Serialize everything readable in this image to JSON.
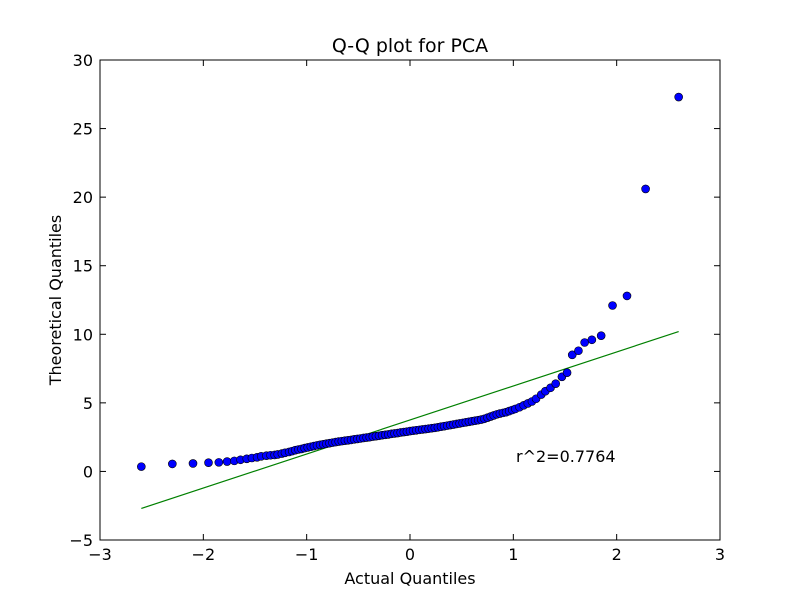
{
  "chart_data": {
    "type": "scatter",
    "title": "Q-Q plot for PCA",
    "xlabel": "Actual Quantiles",
    "ylabel": "Theoretical Quantiles",
    "xlim": [
      -3,
      3
    ],
    "ylim": [
      -5,
      30
    ],
    "xticks": [
      -3,
      -2,
      -1,
      0,
      1,
      2,
      3
    ],
    "yticks": [
      -5,
      0,
      5,
      10,
      15,
      20,
      25,
      30
    ],
    "xtick_labels": [
      "−3",
      "−2",
      "−1",
      "0",
      "1",
      "2",
      "3"
    ],
    "ytick_labels": [
      "−5",
      "0",
      "5",
      "10",
      "15",
      "20",
      "25",
      "30"
    ],
    "grid": false,
    "annotation": "r^2=0.7764",
    "fit_line": {
      "color": "#008000",
      "x": [
        -2.6,
        2.6
      ],
      "y": [
        -2.7,
        10.2
      ]
    },
    "series": [
      {
        "color": "#0000ff",
        "points": [
          [
            -2.6,
            0.35
          ],
          [
            -2.3,
            0.55
          ],
          [
            -2.1,
            0.58
          ],
          [
            -1.95,
            0.64
          ],
          [
            -1.85,
            0.66
          ],
          [
            -1.77,
            0.72
          ],
          [
            -1.7,
            0.77
          ],
          [
            -1.64,
            0.85
          ],
          [
            -1.58,
            0.92
          ],
          [
            -1.53,
            0.98
          ],
          [
            -1.48,
            1.03
          ],
          [
            -1.44,
            1.1
          ],
          [
            -1.39,
            1.15
          ],
          [
            -1.35,
            1.18
          ],
          [
            -1.31,
            1.2
          ],
          [
            -1.28,
            1.24
          ],
          [
            -1.24,
            1.3
          ],
          [
            -1.21,
            1.36
          ],
          [
            -1.17,
            1.42
          ],
          [
            -1.14,
            1.48
          ],
          [
            -1.11,
            1.55
          ],
          [
            -1.08,
            1.6
          ],
          [
            -1.05,
            1.64
          ],
          [
            -1.02,
            1.7
          ],
          [
            -0.99,
            1.75
          ],
          [
            -0.96,
            1.8
          ],
          [
            -0.93,
            1.85
          ],
          [
            -0.9,
            1.9
          ],
          [
            -0.87,
            1.94
          ],
          [
            -0.84,
            1.98
          ],
          [
            -0.81,
            2.02
          ],
          [
            -0.78,
            2.06
          ],
          [
            -0.75,
            2.1
          ],
          [
            -0.72,
            2.14
          ],
          [
            -0.69,
            2.18
          ],
          [
            -0.66,
            2.21
          ],
          [
            -0.63,
            2.24
          ],
          [
            -0.6,
            2.27
          ],
          [
            -0.57,
            2.3
          ],
          [
            -0.54,
            2.34
          ],
          [
            -0.51,
            2.37
          ],
          [
            -0.48,
            2.4
          ],
          [
            -0.45,
            2.44
          ],
          [
            -0.42,
            2.47
          ],
          [
            -0.39,
            2.5
          ],
          [
            -0.36,
            2.54
          ],
          [
            -0.33,
            2.57
          ],
          [
            -0.3,
            2.6
          ],
          [
            -0.27,
            2.64
          ],
          [
            -0.24,
            2.67
          ],
          [
            -0.21,
            2.7
          ],
          [
            -0.18,
            2.74
          ],
          [
            -0.15,
            2.77
          ],
          [
            -0.12,
            2.8
          ],
          [
            -0.09,
            2.84
          ],
          [
            -0.06,
            2.87
          ],
          [
            -0.03,
            2.9
          ],
          [
            0.0,
            2.94
          ],
          [
            0.03,
            2.97
          ],
          [
            0.06,
            3.0
          ],
          [
            0.09,
            3.03
          ],
          [
            0.12,
            3.06
          ],
          [
            0.15,
            3.09
          ],
          [
            0.18,
            3.12
          ],
          [
            0.21,
            3.15
          ],
          [
            0.24,
            3.18
          ],
          [
            0.27,
            3.22
          ],
          [
            0.3,
            3.26
          ],
          [
            0.33,
            3.3
          ],
          [
            0.36,
            3.34
          ],
          [
            0.39,
            3.38
          ],
          [
            0.42,
            3.42
          ],
          [
            0.45,
            3.46
          ],
          [
            0.48,
            3.5
          ],
          [
            0.51,
            3.54
          ],
          [
            0.54,
            3.58
          ],
          [
            0.57,
            3.62
          ],
          [
            0.6,
            3.66
          ],
          [
            0.63,
            3.7
          ],
          [
            0.66,
            3.74
          ],
          [
            0.69,
            3.78
          ],
          [
            0.72,
            3.84
          ],
          [
            0.75,
            3.92
          ],
          [
            0.78,
            4.0
          ],
          [
            0.81,
            4.08
          ],
          [
            0.84,
            4.16
          ],
          [
            0.87,
            4.22
          ],
          [
            0.9,
            4.27
          ],
          [
            0.93,
            4.32
          ],
          [
            0.96,
            4.4
          ],
          [
            0.99,
            4.48
          ],
          [
            1.02,
            4.56
          ],
          [
            1.06,
            4.68
          ],
          [
            1.1,
            4.82
          ],
          [
            1.14,
            4.96
          ],
          [
            1.18,
            5.1
          ],
          [
            1.22,
            5.3
          ],
          [
            1.27,
            5.6
          ],
          [
            1.31,
            5.85
          ],
          [
            1.36,
            6.1
          ],
          [
            1.41,
            6.4
          ],
          [
            1.47,
            6.9
          ],
          [
            1.52,
            7.2
          ],
          [
            1.57,
            8.5
          ],
          [
            1.63,
            8.8
          ],
          [
            1.69,
            9.4
          ],
          [
            1.76,
            9.6
          ],
          [
            1.85,
            9.9
          ],
          [
            1.96,
            12.1
          ],
          [
            2.1,
            12.8
          ],
          [
            2.28,
            20.6
          ],
          [
            2.6,
            27.3
          ]
        ]
      }
    ]
  }
}
